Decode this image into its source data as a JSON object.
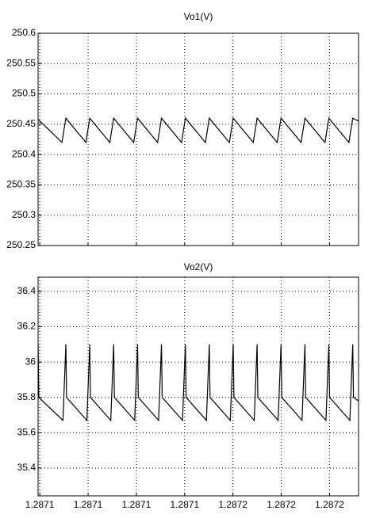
{
  "chart_data": [
    {
      "type": "line",
      "title": "Vo1(V)",
      "color": "#000000",
      "grid": true,
      "x": [
        1.2870793,
        1.2870892,
        1.2870908,
        1.2870991,
        1.2871007,
        1.287109,
        1.2871106,
        1.2871189,
        1.2871205,
        1.2871288,
        1.2871304,
        1.2871387,
        1.2871403,
        1.2871486,
        1.2871502,
        1.2871585,
        1.2871601,
        1.2871684,
        1.28717,
        1.2871783,
        1.2871799,
        1.2871882,
        1.2871898,
        1.2871981,
        1.2871997,
        1.287208,
        1.2872096,
        1.287212
      ],
      "values": [
        250.458,
        250.42,
        250.46,
        250.42,
        250.46,
        250.42,
        250.46,
        250.42,
        250.46,
        250.42,
        250.46,
        250.42,
        250.46,
        250.42,
        250.46,
        250.42,
        250.46,
        250.42,
        250.46,
        250.42,
        250.46,
        250.42,
        250.46,
        250.42,
        250.46,
        250.42,
        250.46,
        250.455
      ],
      "xlim": [
        1.2870793,
        1.287212
      ],
      "xticks": [
        1.28708,
        1.2871,
        1.28712,
        1.28714,
        1.28716,
        1.28718,
        1.2872
      ],
      "ylim": [
        250.25,
        250.6
      ],
      "yticks": [
        250.25,
        250.3,
        250.35,
        250.4,
        250.45,
        250.5,
        250.55,
        250.6
      ]
    },
    {
      "type": "line",
      "title": "Vo2(V)",
      "color": "#000000",
      "grid": true,
      "x": [
        1.2870793,
        1.2870796,
        1.2870896,
        1.2870908,
        1.2870911,
        1.2870995,
        1.2871007,
        1.287101,
        1.2871094,
        1.2871106,
        1.2871109,
        1.2871193,
        1.2871205,
        1.2871208,
        1.2871292,
        1.2871304,
        1.2871307,
        1.2871391,
        1.2871403,
        1.2871406,
        1.287149,
        1.2871502,
        1.2871505,
        1.2871589,
        1.2871601,
        1.2871604,
        1.2871688,
        1.28717,
        1.2871703,
        1.2871787,
        1.2871799,
        1.2871802,
        1.2871886,
        1.2871898,
        1.2871901,
        1.2871985,
        1.2871997,
        1.2872,
        1.2872084,
        1.2872096,
        1.2872099,
        1.287212
      ],
      "values": [
        36.1,
        35.8,
        35.67,
        36.1,
        35.8,
        35.67,
        36.1,
        35.8,
        35.67,
        36.1,
        35.8,
        35.67,
        36.1,
        35.8,
        35.67,
        36.1,
        35.8,
        35.67,
        36.1,
        35.8,
        35.67,
        36.1,
        35.8,
        35.67,
        36.1,
        35.8,
        35.67,
        36.1,
        35.8,
        35.67,
        36.1,
        35.8,
        35.67,
        36.1,
        35.8,
        35.67,
        36.1,
        35.8,
        35.67,
        36.1,
        35.8,
        35.78
      ],
      "xlim": [
        1.2870793,
        1.287212
      ],
      "xticks": [
        {
          "value": 1.28708,
          "label": "1.2871"
        },
        {
          "value": 1.2871,
          "label": "1.2871"
        },
        {
          "value": 1.28712,
          "label": "1.2871"
        },
        {
          "value": 1.28714,
          "label": "1.2871"
        },
        {
          "value": 1.28716,
          "label": "1.2872"
        },
        {
          "value": 1.28718,
          "label": "1.2872"
        },
        {
          "value": 1.2872,
          "label": "1.2872"
        }
      ],
      "ylim": [
        35.243,
        36.48
      ],
      "yticks": [
        35.4,
        35.6,
        35.8,
        36,
        36.2,
        36.4
      ]
    }
  ]
}
